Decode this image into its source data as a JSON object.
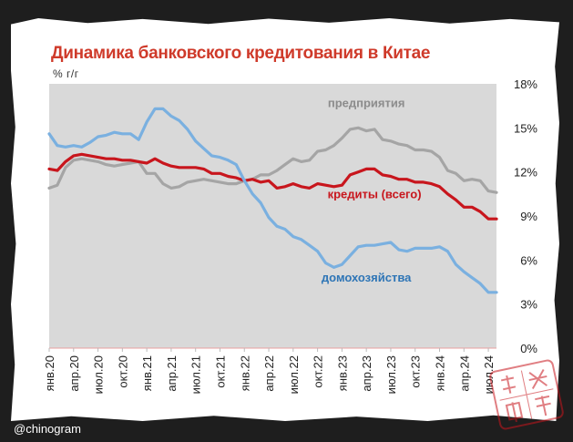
{
  "watermark": "@chinogram",
  "seal_text": "电报中国",
  "colors": {
    "households": "#7ab0e0",
    "credit": "#c8161d",
    "enterprises": "#a5a5a5",
    "plot_bg": "#d9d9d9",
    "title": "#cf3a2a"
  },
  "chart_data": {
    "type": "line",
    "title": "Динамика банковского кредитования в Китае",
    "ylabel": "% г/г",
    "ylim": [
      0,
      18
    ],
    "yticks": [
      0,
      3,
      6,
      9,
      12,
      15,
      18
    ],
    "ytick_labels": [
      "0%",
      "3%",
      "6%",
      "9%",
      "12%",
      "15%",
      "18%"
    ],
    "x_tick_labels": [
      "янв.20",
      "апр.20",
      "июл.20",
      "окт.20",
      "янв.21",
      "апр.21",
      "июл.21",
      "окт.21",
      "янв.22",
      "апр.22",
      "июл.22",
      "окт.22",
      "янв.23",
      "апр.23",
      "июл.23",
      "окт.23",
      "янв.24",
      "апр.24",
      "июл.24"
    ],
    "x_tick_step_months": 3,
    "grid": false,
    "series": [
      {
        "name": "предприятия",
        "color": "#a5a5a5",
        "values": [
          10.9,
          11.1,
          12.3,
          12.8,
          12.9,
          12.8,
          12.7,
          12.5,
          12.4,
          12.5,
          12.6,
          12.7,
          11.9,
          11.9,
          11.2,
          10.9,
          11.0,
          11.3,
          11.4,
          11.5,
          11.4,
          11.3,
          11.2,
          11.2,
          11.4,
          11.5,
          11.8,
          11.8,
          12.1,
          12.5,
          12.9,
          12.7,
          12.8,
          13.4,
          13.5,
          13.8,
          14.3,
          14.9,
          15.0,
          14.8,
          14.9,
          14.2,
          14.1,
          13.9,
          13.8,
          13.5,
          13.5,
          13.4,
          13.0,
          12.1,
          11.9,
          11.4,
          11.5,
          11.4,
          10.7,
          10.6
        ]
      },
      {
        "name": "кредиты (всего)",
        "color": "#c8161d",
        "values": [
          12.2,
          12.1,
          12.7,
          13.1,
          13.2,
          13.1,
          13.0,
          12.9,
          12.9,
          12.8,
          12.8,
          12.7,
          12.6,
          12.9,
          12.6,
          12.4,
          12.3,
          12.3,
          12.3,
          12.2,
          11.9,
          11.9,
          11.7,
          11.6,
          11.4,
          11.5,
          11.3,
          11.4,
          10.9,
          11.0,
          11.2,
          11.0,
          10.9,
          11.2,
          11.1,
          11.0,
          11.1,
          11.8,
          12.0,
          12.2,
          12.2,
          11.8,
          11.7,
          11.5,
          11.5,
          11.3,
          11.3,
          11.2,
          11.0,
          10.5,
          10.1,
          9.6,
          9.6,
          9.3,
          8.8,
          8.8
        ]
      },
      {
        "name": "домохозяйства",
        "color": "#7ab0e0",
        "values": [
          14.6,
          13.8,
          13.7,
          13.8,
          13.7,
          14.0,
          14.4,
          14.5,
          14.7,
          14.6,
          14.6,
          14.2,
          15.4,
          16.3,
          16.3,
          15.8,
          15.5,
          14.9,
          14.1,
          13.6,
          13.1,
          13.0,
          12.8,
          12.5,
          11.4,
          10.5,
          9.9,
          8.9,
          8.3,
          8.1,
          7.6,
          7.4,
          7.0,
          6.6,
          5.8,
          5.5,
          5.7,
          6.3,
          6.9,
          7.0,
          7.0,
          7.1,
          7.2,
          6.7,
          6.6,
          6.8,
          6.8,
          6.8,
          6.9,
          6.6,
          5.7,
          5.2,
          4.8,
          4.4,
          3.8,
          3.8
        ]
      }
    ],
    "annotations": [
      {
        "text": "предприятия",
        "series": "предприятия",
        "color": "#8c8c8c"
      },
      {
        "text": "кредиты (всего)",
        "series": "кредиты (всего)",
        "color": "#c8161d"
      },
      {
        "text": "домохозяйства",
        "series": "домохозяйства",
        "color": "#2e75b6"
      }
    ]
  }
}
